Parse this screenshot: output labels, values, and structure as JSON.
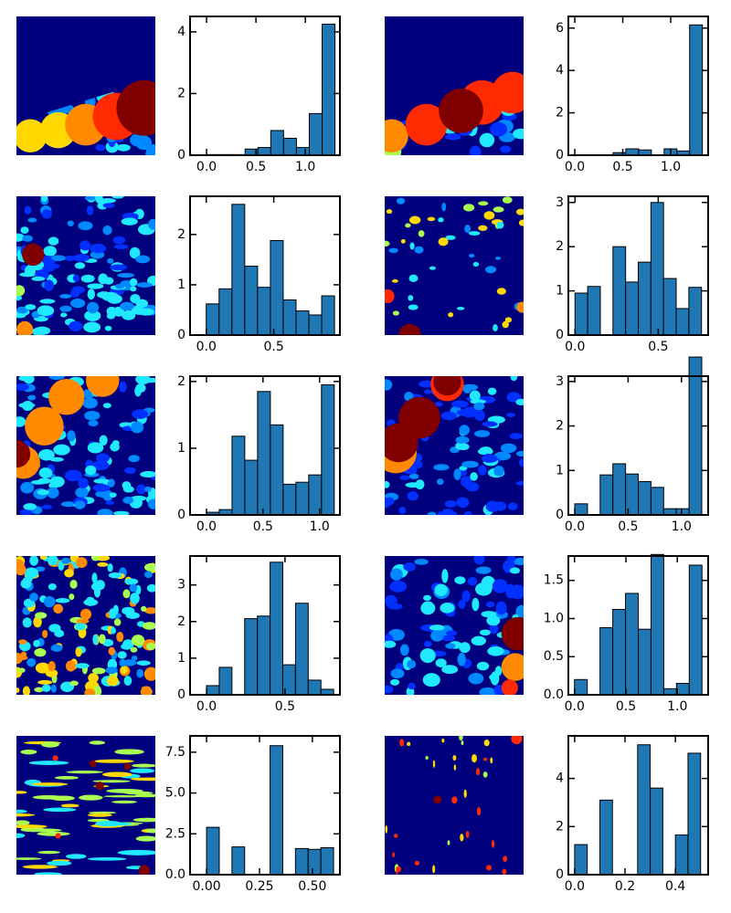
{
  "chart_data": [
    {
      "type": "histogram",
      "color": "#1f77b4",
      "bins": [
        0,
        0.13,
        0.26,
        0.39,
        0.52,
        0.65,
        0.78,
        0.91,
        1.04,
        1.17,
        1.3
      ],
      "values": [
        0.02,
        0.02,
        0.02,
        0.2,
        0.25,
        0.8,
        0.55,
        0.25,
        1.35,
        4.25
      ],
      "xlim": [
        -0.167,
        1.35
      ],
      "ylim": [
        0,
        4.5
      ],
      "xticks": [
        {
          "value": 0,
          "label": "0.0"
        },
        0.5,
        {
          "value": 1,
          "label": "1.0"
        }
      ],
      "yticks": [
        0,
        2,
        4
      ]
    },
    {
      "type": "histogram",
      "color": "#1f77b4",
      "bins": [
        0,
        0.133,
        0.266,
        0.399,
        0.532,
        0.665,
        0.798,
        0.931,
        1.064,
        1.197,
        1.33
      ],
      "values": [
        0,
        0,
        0,
        0.12,
        0.3,
        0.25,
        0.02,
        0.3,
        0.2,
        6.15
      ],
      "xlim": [
        -0.067,
        1.39
      ],
      "ylim": [
        0,
        6.55
      ],
      "xticks": [
        {
          "value": 0,
          "label": "0.0"
        },
        0.5,
        {
          "value": 1,
          "label": "1.0"
        }
      ],
      "yticks": [
        0,
        2,
        4,
        6
      ]
    },
    {
      "type": "histogram",
      "color": "#1f77b4",
      "bins": [
        0,
        0.095,
        0.19,
        0.285,
        0.38,
        0.475,
        0.57,
        0.665,
        0.76,
        0.855,
        0.95
      ],
      "values": [
        0.62,
        0.92,
        2.6,
        1.37,
        0.95,
        1.88,
        0.7,
        0.48,
        0.4,
        0.78
      ],
      "xlim": [
        -0.12,
        0.99
      ],
      "ylim": [
        0,
        2.76
      ],
      "xticks": [
        {
          "value": 0,
          "label": "0.0"
        },
        0.5
      ],
      "yticks": [
        0,
        1,
        2
      ]
    },
    {
      "type": "histogram",
      "color": "#1f77b4",
      "bins": [
        0,
        0.076,
        0.152,
        0.228,
        0.304,
        0.38,
        0.456,
        0.532,
        0.608,
        0.684,
        0.76
      ],
      "values": [
        0.95,
        1.1,
        0,
        2.0,
        1.2,
        1.65,
        3.0,
        1.28,
        0.6,
        1.08
      ],
      "xlim": [
        -0.04,
        0.8
      ],
      "ylim": [
        0,
        3.14
      ],
      "xticks": [
        {
          "value": 0,
          "label": "0.0"
        },
        0.5
      ],
      "yticks": [
        0,
        1,
        2,
        3
      ]
    },
    {
      "type": "histogram",
      "color": "#1f77b4",
      "bins": [
        0,
        0.113,
        0.226,
        0.339,
        0.452,
        0.565,
        0.678,
        0.791,
        0.904,
        1.017,
        1.13
      ],
      "values": [
        0.04,
        0.08,
        1.18,
        0.82,
        1.85,
        1.35,
        0.46,
        0.49,
        0.6,
        1.95
      ],
      "xlim": [
        -0.145,
        1.18
      ],
      "ylim": [
        0,
        2.08
      ],
      "xticks": [
        {
          "value": 0,
          "label": "0.0"
        },
        0.5,
        {
          "value": 1,
          "label": "1.0"
        }
      ],
      "yticks": [
        0,
        1,
        2
      ]
    },
    {
      "type": "histogram",
      "color": "#1f77b4",
      "bins": [
        0,
        0.119,
        0.238,
        0.357,
        0.476,
        0.595,
        0.714,
        0.833,
        0.952,
        1.071,
        1.19
      ],
      "values": [
        0.25,
        0,
        0.9,
        1.15,
        0.92,
        0.75,
        0.62,
        0.14,
        0.14,
        3.55
      ],
      "xlim": [
        -0.06,
        1.25
      ],
      "ylim": [
        0,
        3.12
      ],
      "xticks": [
        {
          "value": 0,
          "label": "0.0"
        },
        0.5,
        {
          "value": 1,
          "label": "1.0"
        }
      ],
      "yticks": [
        0,
        1,
        2,
        3
      ]
    },
    {
      "type": "histogram",
      "color": "#1f77b4",
      "bins": [
        0,
        0.081,
        0.162,
        0.243,
        0.324,
        0.405,
        0.486,
        0.567,
        0.648,
        0.729,
        0.81
      ],
      "values": [
        0.25,
        0.75,
        0,
        2.08,
        2.15,
        3.62,
        0.82,
        2.5,
        0.4,
        0.15
      ],
      "xlim": [
        -0.105,
        0.85
      ],
      "ylim": [
        0,
        3.79
      ],
      "xticks": [
        {
          "value": 0,
          "label": "0.0"
        },
        0.5
      ],
      "yticks": [
        0,
        1,
        2,
        3
      ]
    },
    {
      "type": "histogram",
      "color": "#1f77b4",
      "bins": [
        0,
        0.124,
        0.248,
        0.372,
        0.496,
        0.62,
        0.744,
        0.868,
        0.992,
        1.116,
        1.24
      ],
      "values": [
        0.2,
        0,
        0.88,
        1.12,
        1.33,
        0.86,
        1.84,
        0.08,
        0.15,
        1.7
      ],
      "xlim": [
        -0.06,
        1.3
      ],
      "ylim": [
        0,
        1.82
      ],
      "xticks": [
        {
          "value": 0,
          "label": "0.0"
        },
        0.5,
        {
          "value": 1,
          "label": "1.0"
        }
      ],
      "yticks": [
        {
          "value": 0,
          "label": "0.0"
        },
        0.5,
        {
          "value": 1,
          "label": "1.0"
        },
        1.5
      ]
    },
    {
      "type": "histogram",
      "color": "#1f77b4",
      "bins": [
        0,
        0.06,
        0.12,
        0.18,
        0.24,
        0.3,
        0.36,
        0.42,
        0.48,
        0.54,
        0.6
      ],
      "values": [
        2.9,
        0,
        1.7,
        0,
        0,
        7.9,
        0,
        1.6,
        1.55,
        1.65
      ],
      "xlim": [
        -0.078,
        0.63
      ],
      "ylim": [
        0,
        8.5
      ],
      "xticks": [
        {
          "value": 0,
          "label": "0.00"
        },
        0.25,
        {
          "value": 0.5,
          "label": "0.50"
        }
      ],
      "yticks": [
        {
          "value": 0,
          "label": "0.0"
        },
        2.5,
        {
          "value": 5,
          "label": "5.0"
        },
        7.5
      ]
    },
    {
      "type": "histogram",
      "color": "#1f77b4",
      "bins": [
        0,
        0.05,
        0.1,
        0.15,
        0.2,
        0.25,
        0.3,
        0.35,
        0.4,
        0.45,
        0.5
      ],
      "values": [
        1.25,
        0,
        3.1,
        0,
        0,
        5.4,
        3.6,
        0,
        1.65,
        5.05
      ],
      "xlim": [
        -0.025,
        0.53
      ],
      "ylim": [
        0,
        5.77
      ],
      "xticks": [
        {
          "value": 0,
          "label": "0.0"
        },
        0.2,
        0.4
      ],
      "yticks": [
        0,
        2,
        4
      ]
    }
  ]
}
